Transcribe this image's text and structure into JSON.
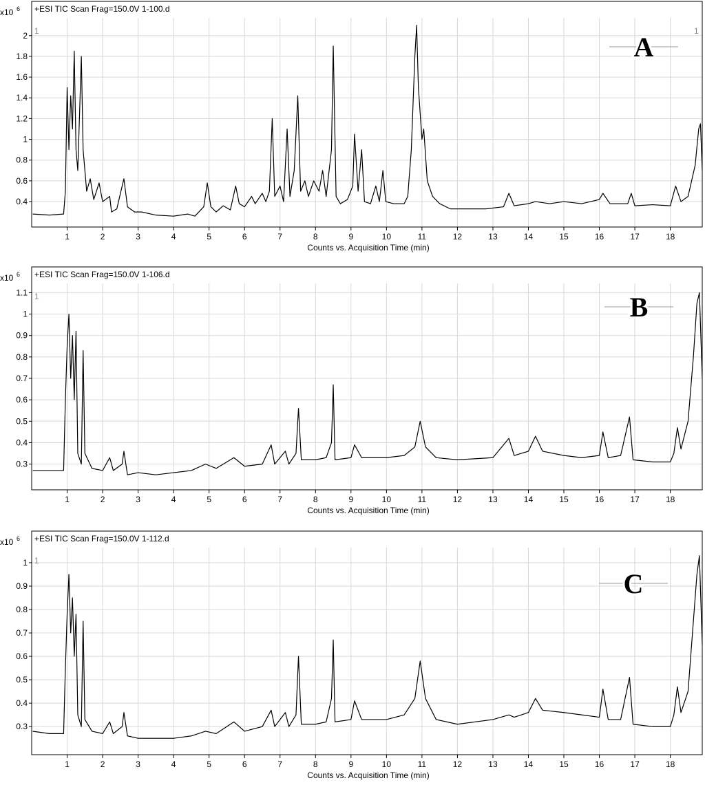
{
  "chart_data": [
    {
      "type": "line",
      "title": "+ESI TIC Scan Frag=150.0V 1-100.d",
      "panel_label": "A",
      "x_label": "Counts vs. Acquisition Time (min)",
      "y_multiplier": {
        "base": "x10",
        "exponent": "6"
      },
      "corner_labels": [
        "1",
        "1"
      ],
      "color": "#000000",
      "grid": true,
      "xlim": [
        0,
        18.9
      ],
      "xticks": [
        1,
        2,
        3,
        4,
        5,
        6,
        7,
        8,
        9,
        10,
        11,
        12,
        13,
        14,
        15,
        16,
        17,
        18
      ],
      "ylim": [
        0.155,
        2.33
      ],
      "yticks": [
        0.4,
        0.6,
        0.8,
        1,
        1.2,
        1.4,
        1.6,
        1.8,
        2
      ],
      "x": [
        0.03,
        0.5,
        0.9,
        0.95,
        1.0,
        1.05,
        1.1,
        1.15,
        1.2,
        1.25,
        1.3,
        1.4,
        1.45,
        1.55,
        1.65,
        1.75,
        1.9,
        2.0,
        2.2,
        2.25,
        2.4,
        2.55,
        2.6,
        2.7,
        2.9,
        3.1,
        3.5,
        4.0,
        4.4,
        4.6,
        4.85,
        4.95,
        5.05,
        5.2,
        5.4,
        5.6,
        5.75,
        5.85,
        6.0,
        6.2,
        6.3,
        6.5,
        6.6,
        6.7,
        6.78,
        6.85,
        7.0,
        7.1,
        7.2,
        7.28,
        7.4,
        7.5,
        7.58,
        7.7,
        7.8,
        7.95,
        8.1,
        8.2,
        8.3,
        8.45,
        8.5,
        8.58,
        8.7,
        8.9,
        9.05,
        9.1,
        9.2,
        9.3,
        9.38,
        9.55,
        9.7,
        9.8,
        9.9,
        9.98,
        10.2,
        10.5,
        10.6,
        10.7,
        10.8,
        10.85,
        10.9,
        11.0,
        11.05,
        11.15,
        11.3,
        11.5,
        11.8,
        12.2,
        12.8,
        13.3,
        13.45,
        13.6,
        14.0,
        14.2,
        14.6,
        15.0,
        15.5,
        16.0,
        16.1,
        16.3,
        16.8,
        16.9,
        17.0,
        17.5,
        18.0,
        18.15,
        18.3,
        18.5,
        18.7,
        18.8,
        18.85,
        18.9
      ],
      "values": [
        0.28,
        0.27,
        0.28,
        0.5,
        1.5,
        0.9,
        1.42,
        1.1,
        1.85,
        0.9,
        0.7,
        1.8,
        0.9,
        0.5,
        0.62,
        0.42,
        0.58,
        0.4,
        0.45,
        0.3,
        0.33,
        0.55,
        0.62,
        0.35,
        0.3,
        0.3,
        0.27,
        0.26,
        0.28,
        0.26,
        0.35,
        0.58,
        0.35,
        0.3,
        0.36,
        0.32,
        0.55,
        0.38,
        0.35,
        0.45,
        0.38,
        0.48,
        0.4,
        0.5,
        1.2,
        0.45,
        0.55,
        0.4,
        1.1,
        0.45,
        0.7,
        1.42,
        0.5,
        0.6,
        0.45,
        0.6,
        0.5,
        0.7,
        0.45,
        0.9,
        1.9,
        0.45,
        0.38,
        0.42,
        0.55,
        1.05,
        0.5,
        0.9,
        0.4,
        0.38,
        0.55,
        0.4,
        0.7,
        0.4,
        0.38,
        0.38,
        0.45,
        0.9,
        1.8,
        2.1,
        1.5,
        1.0,
        1.1,
        0.6,
        0.45,
        0.38,
        0.33,
        0.33,
        0.33,
        0.35,
        0.48,
        0.36,
        0.38,
        0.4,
        0.38,
        0.4,
        0.38,
        0.42,
        0.48,
        0.38,
        0.38,
        0.48,
        0.36,
        0.37,
        0.36,
        0.55,
        0.4,
        0.45,
        0.75,
        1.1,
        1.15,
        0.7
      ]
    },
    {
      "type": "line",
      "title": "+ESI TIC Scan Frag=150.0V 1-106.d",
      "panel_label": "B",
      "x_label": "Counts vs. Acquisition Time (min)",
      "y_multiplier": {
        "base": "x10",
        "exponent": "6"
      },
      "corner_labels": [
        "1"
      ],
      "color": "#000000",
      "grid": true,
      "xlim": [
        0,
        18.9
      ],
      "xticks": [
        1,
        2,
        3,
        4,
        5,
        6,
        7,
        8,
        9,
        10,
        11,
        12,
        13,
        14,
        15,
        16,
        17,
        18
      ],
      "ylim": [
        0.18,
        1.22
      ],
      "yticks": [
        0.3,
        0.4,
        0.5,
        0.6,
        0.7,
        0.8,
        0.9,
        1,
        1.1
      ],
      "x": [
        0.03,
        0.5,
        0.9,
        0.95,
        1.0,
        1.05,
        1.1,
        1.15,
        1.2,
        1.25,
        1.3,
        1.4,
        1.45,
        1.5,
        1.7,
        2.0,
        2.2,
        2.3,
        2.55,
        2.6,
        2.7,
        3.0,
        3.5,
        4.0,
        4.5,
        4.9,
        5.2,
        5.7,
        6.0,
        6.5,
        6.75,
        6.85,
        7.15,
        7.25,
        7.45,
        7.52,
        7.6,
        8.0,
        8.3,
        8.45,
        8.5,
        8.55,
        9.0,
        9.1,
        9.3,
        10.0,
        10.5,
        10.8,
        10.95,
        11.1,
        11.4,
        12.0,
        13.0,
        13.45,
        13.6,
        14.0,
        14.2,
        14.4,
        15.0,
        15.5,
        16.0,
        16.1,
        16.25,
        16.6,
        16.85,
        16.95,
        17.5,
        18.0,
        18.1,
        18.2,
        18.3,
        18.5,
        18.65,
        18.75,
        18.82,
        18.9
      ],
      "values": [
        0.27,
        0.27,
        0.27,
        0.6,
        0.85,
        1.0,
        0.7,
        0.9,
        0.6,
        0.92,
        0.35,
        0.3,
        0.83,
        0.35,
        0.28,
        0.27,
        0.33,
        0.27,
        0.3,
        0.36,
        0.25,
        0.26,
        0.25,
        0.26,
        0.27,
        0.3,
        0.28,
        0.33,
        0.29,
        0.3,
        0.39,
        0.3,
        0.36,
        0.3,
        0.35,
        0.56,
        0.32,
        0.32,
        0.33,
        0.4,
        0.67,
        0.32,
        0.33,
        0.39,
        0.33,
        0.33,
        0.34,
        0.38,
        0.5,
        0.38,
        0.33,
        0.32,
        0.33,
        0.42,
        0.34,
        0.36,
        0.43,
        0.36,
        0.34,
        0.33,
        0.34,
        0.45,
        0.33,
        0.34,
        0.52,
        0.32,
        0.31,
        0.31,
        0.35,
        0.47,
        0.37,
        0.5,
        0.8,
        1.05,
        1.1,
        0.7
      ]
    },
    {
      "type": "line",
      "title": "+ESI TIC Scan Frag=150.0V 1-112.d",
      "panel_label": "C",
      "x_label": "Counts vs. Acquisition Time (min)",
      "y_multiplier": {
        "base": "x10",
        "exponent": "6"
      },
      "corner_labels": [
        "1"
      ],
      "color": "#000000",
      "grid": true,
      "xlim": [
        0,
        18.9
      ],
      "xticks": [
        1,
        2,
        3,
        4,
        5,
        6,
        7,
        8,
        9,
        10,
        11,
        12,
        13,
        14,
        15,
        16,
        17,
        18
      ],
      "ylim": [
        0.18,
        1.135
      ],
      "yticks": [
        0.3,
        0.4,
        0.5,
        0.6,
        0.7,
        0.8,
        0.9,
        1
      ],
      "x": [
        0.03,
        0.5,
        0.9,
        0.95,
        1.0,
        1.05,
        1.1,
        1.15,
        1.2,
        1.25,
        1.3,
        1.4,
        1.45,
        1.5,
        1.7,
        2.0,
        2.2,
        2.3,
        2.55,
        2.6,
        2.7,
        3.0,
        3.5,
        4.0,
        4.5,
        4.9,
        5.2,
        5.7,
        6.0,
        6.5,
        6.75,
        6.85,
        7.15,
        7.25,
        7.45,
        7.52,
        7.6,
        8.0,
        8.3,
        8.45,
        8.5,
        8.55,
        9.0,
        9.1,
        9.3,
        10.0,
        10.5,
        10.8,
        10.95,
        11.1,
        11.4,
        12.0,
        13.0,
        13.45,
        13.6,
        14.0,
        14.2,
        14.4,
        15.0,
        15.5,
        16.0,
        16.1,
        16.25,
        16.6,
        16.85,
        16.95,
        17.5,
        18.0,
        18.1,
        18.2,
        18.3,
        18.5,
        18.65,
        18.75,
        18.82,
        18.9
      ],
      "values": [
        0.28,
        0.27,
        0.27,
        0.55,
        0.78,
        0.95,
        0.7,
        0.85,
        0.6,
        0.78,
        0.35,
        0.3,
        0.75,
        0.33,
        0.28,
        0.27,
        0.32,
        0.27,
        0.3,
        0.36,
        0.26,
        0.25,
        0.25,
        0.25,
        0.26,
        0.28,
        0.27,
        0.32,
        0.28,
        0.3,
        0.37,
        0.3,
        0.36,
        0.3,
        0.35,
        0.6,
        0.31,
        0.31,
        0.32,
        0.42,
        0.67,
        0.32,
        0.33,
        0.41,
        0.33,
        0.33,
        0.35,
        0.42,
        0.58,
        0.42,
        0.33,
        0.31,
        0.33,
        0.35,
        0.34,
        0.36,
        0.42,
        0.37,
        0.36,
        0.35,
        0.34,
        0.46,
        0.33,
        0.33,
        0.51,
        0.31,
        0.3,
        0.3,
        0.35,
        0.47,
        0.36,
        0.45,
        0.75,
        0.95,
        1.03,
        0.65
      ]
    }
  ]
}
